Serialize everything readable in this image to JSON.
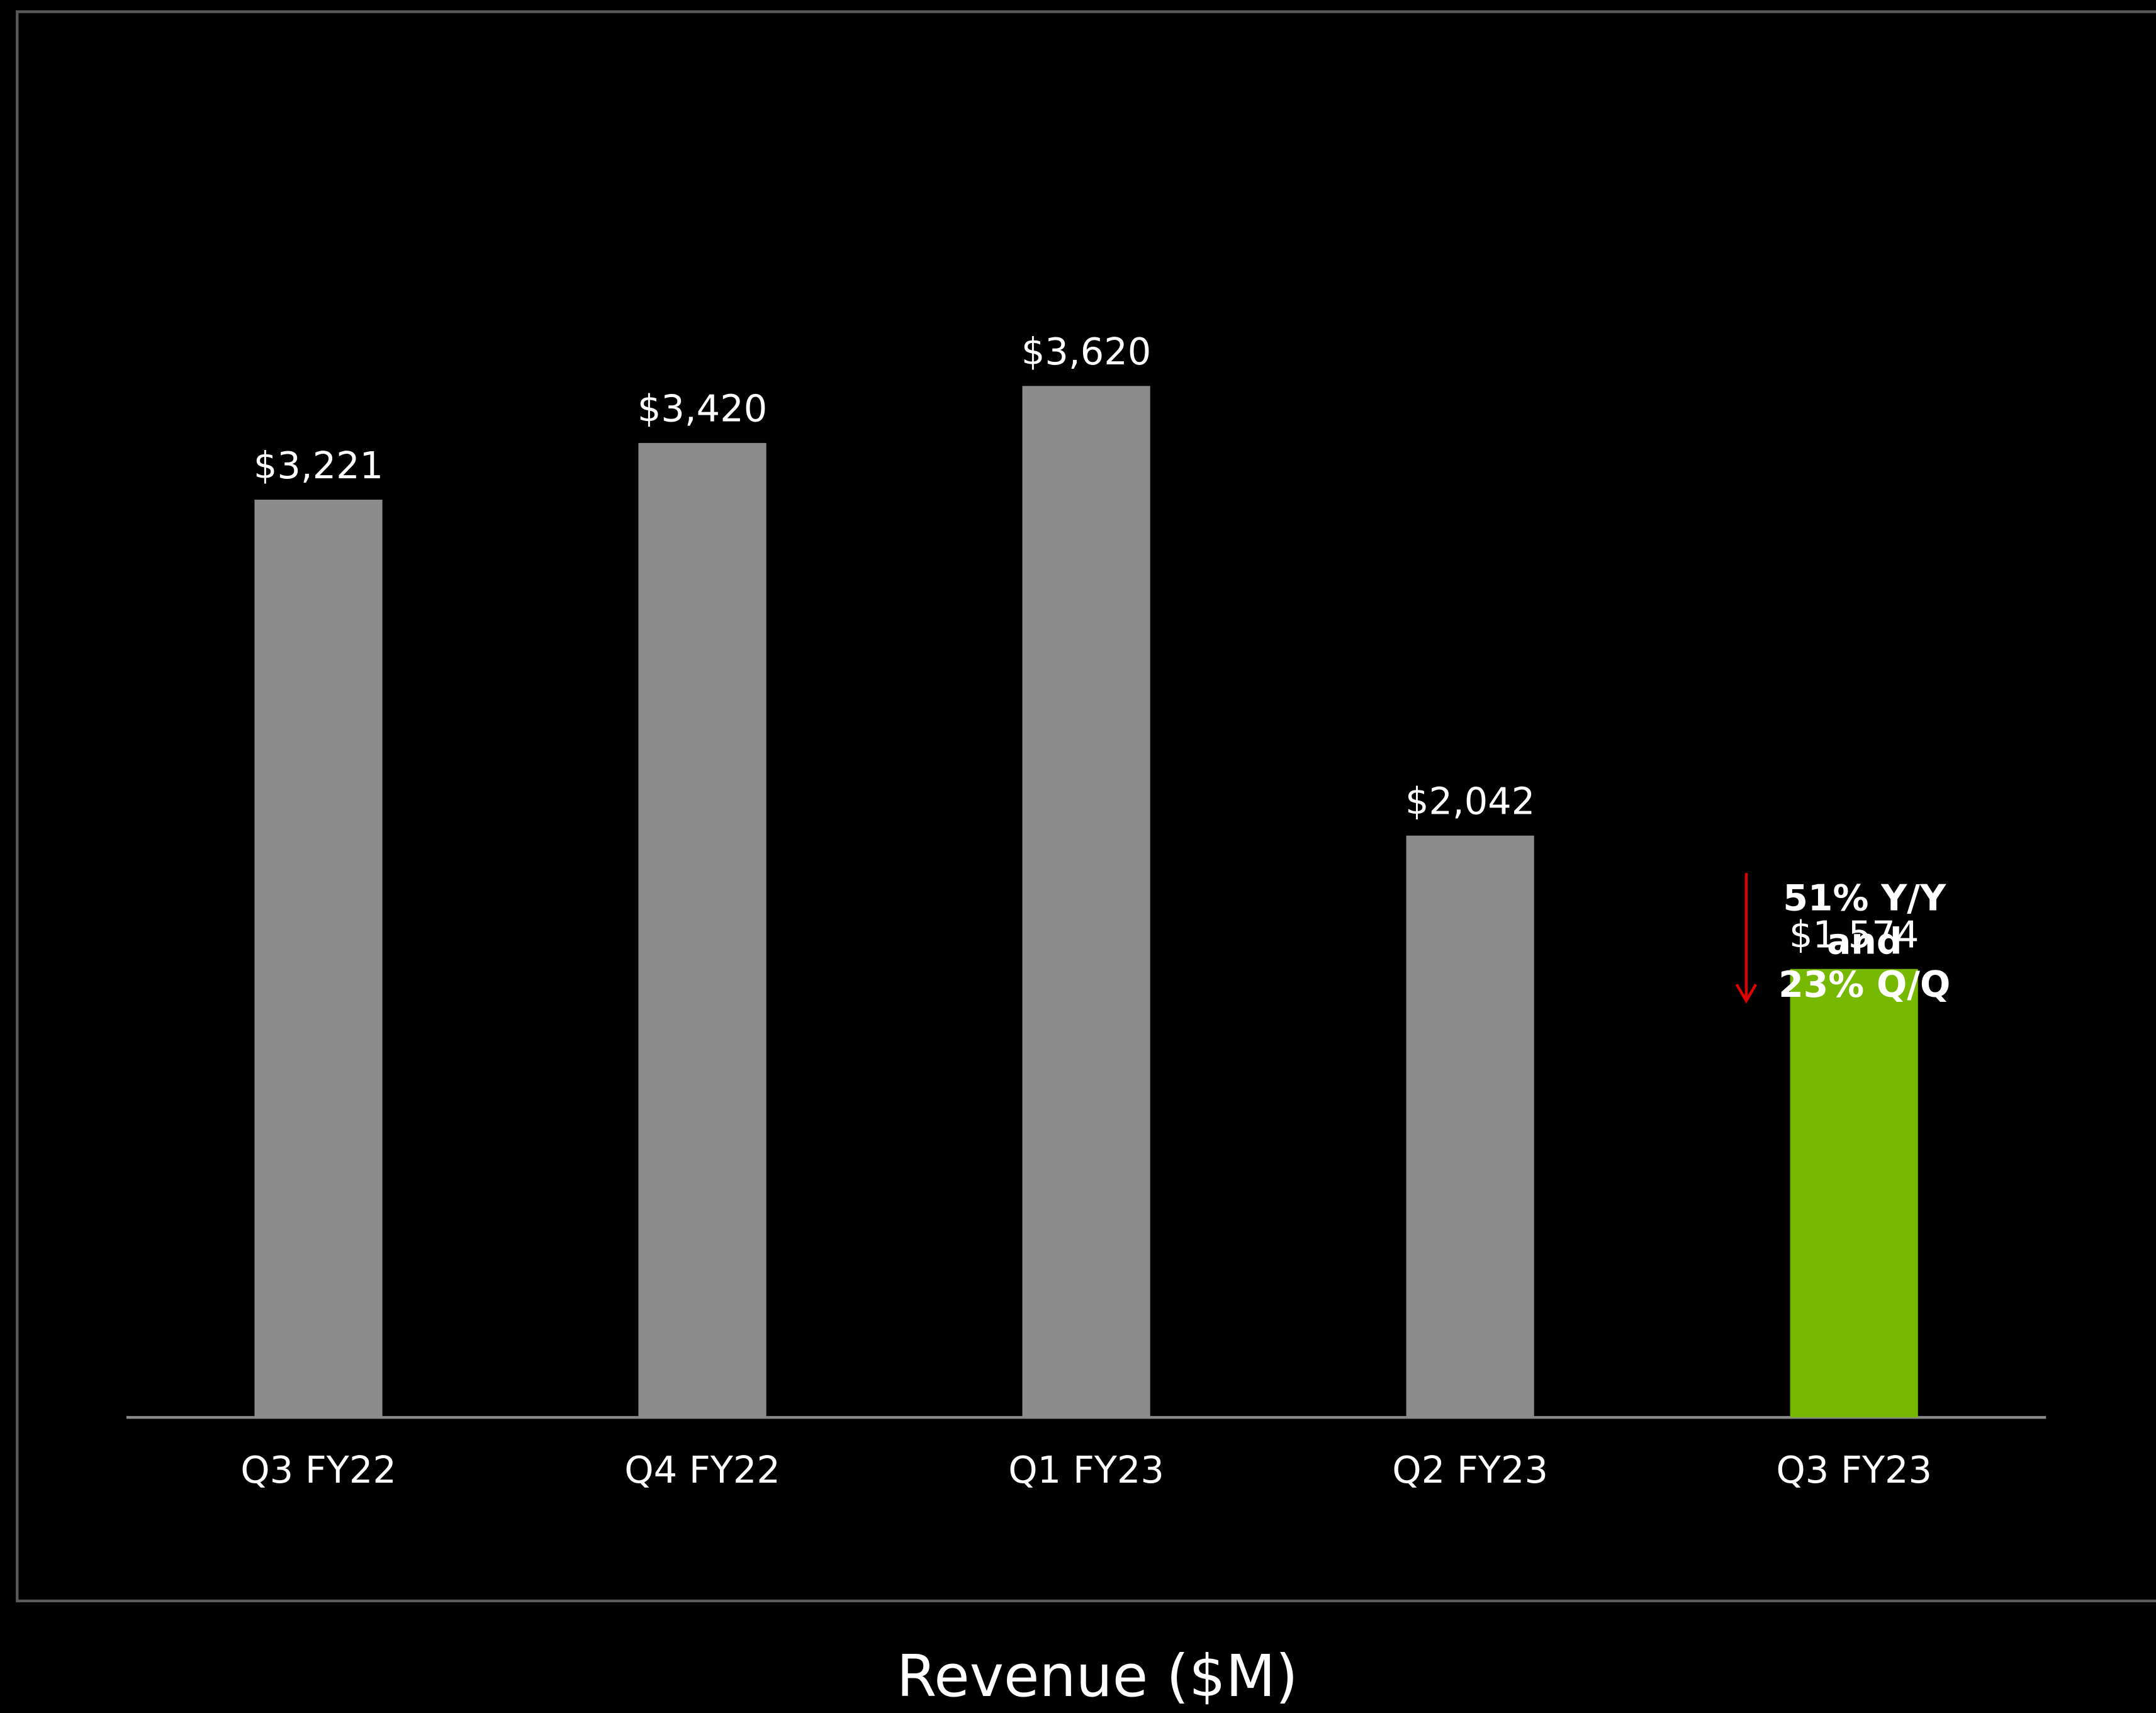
{
  "chart_data": {
    "type": "bar",
    "title": "Revenue ($M)",
    "categories": [
      "Q3 FY22",
      "Q4 FY22",
      "Q1 FY23",
      "Q2 FY23",
      "Q3 FY23"
    ],
    "values": [
      3221,
      3420,
      3620,
      2042,
      1574
    ],
    "value_labels": [
      "$3,221",
      "$3,420",
      "$3,620",
      "$2,042",
      "$1,574"
    ],
    "colors": [
      "#8c8c8c",
      "#8c8c8c",
      "#8c8c8c",
      "#8c8c8c",
      "#76b900"
    ],
    "ylim": [
      0,
      4000
    ],
    "annotation": [
      "51% Y/Y",
      "and",
      "23% Q/Q"
    ]
  }
}
